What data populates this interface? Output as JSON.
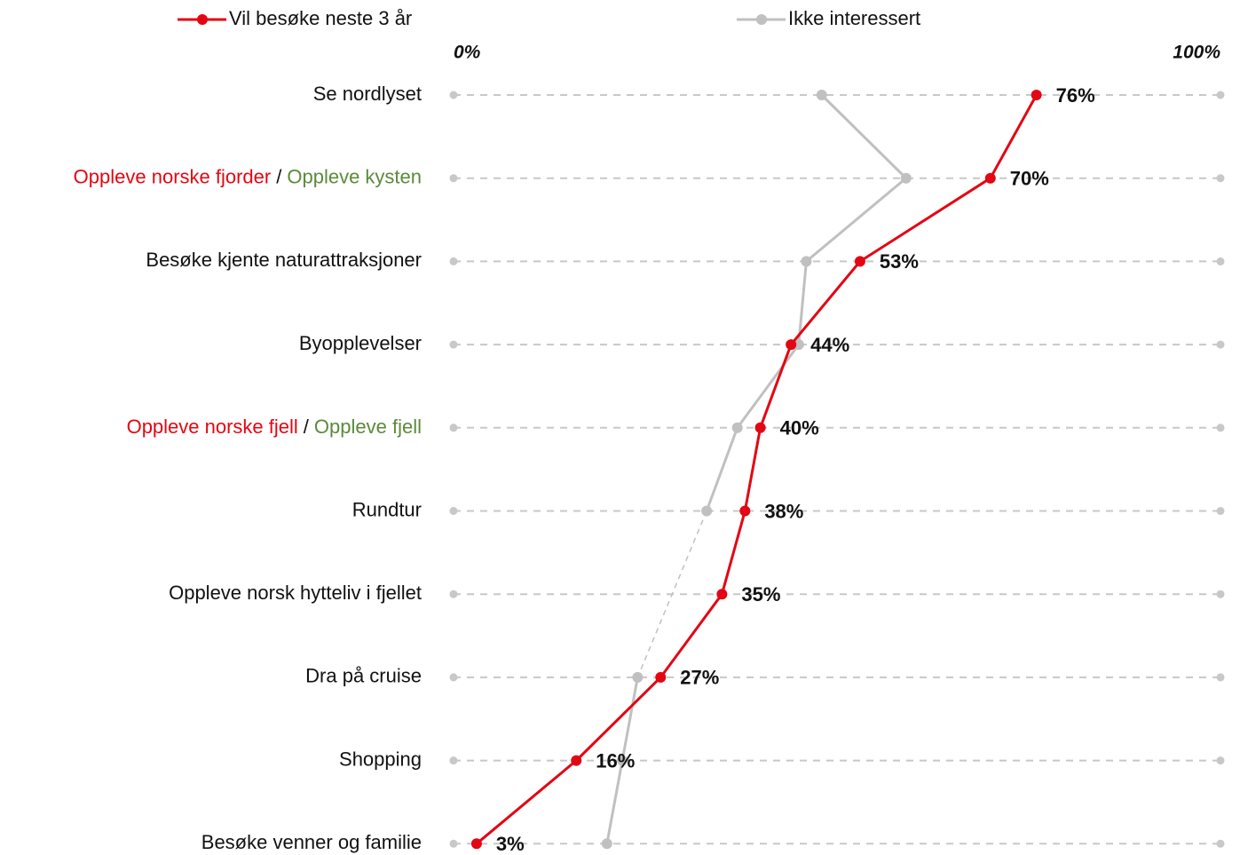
{
  "chart_data": {
    "type": "line",
    "orientation": "horizontal",
    "categories": [
      "Se nordlyset",
      [
        "Oppleve norske fjorder",
        "Oppleve kysten"
      ],
      "Besøke kjente naturattraksjoner",
      "Byopplevelser",
      [
        "Oppleve norske fjell",
        "Oppleve fjell"
      ],
      "Rundtur",
      "Oppleve norsk hytteliv i fjellet",
      "Dra på cruise",
      "Shopping",
      "Besøke venner og familie"
    ],
    "category_separator": "/",
    "category_part_colors": [
      "#e30613",
      "#5a8a3a"
    ],
    "xlim": [
      0,
      100
    ],
    "xticks": [
      {
        "value": 0,
        "label": "0%"
      },
      {
        "value": 100,
        "label": "100%"
      }
    ],
    "series": [
      {
        "name": "Vil besøke neste 3 år",
        "color": "#e30613",
        "values": [
          76,
          70,
          53,
          44,
          40,
          38,
          35,
          27,
          16,
          3
        ],
        "value_labels": [
          "76%",
          "70%",
          "53%",
          "44%",
          "40%",
          "38%",
          "35%",
          "27%",
          "16%",
          "3%"
        ]
      },
      {
        "name": "Ikke interessert",
        "color": "#c0c0c0",
        "values": [
          48,
          59,
          46,
          45,
          37,
          33,
          null,
          24,
          22,
          20
        ]
      }
    ]
  }
}
